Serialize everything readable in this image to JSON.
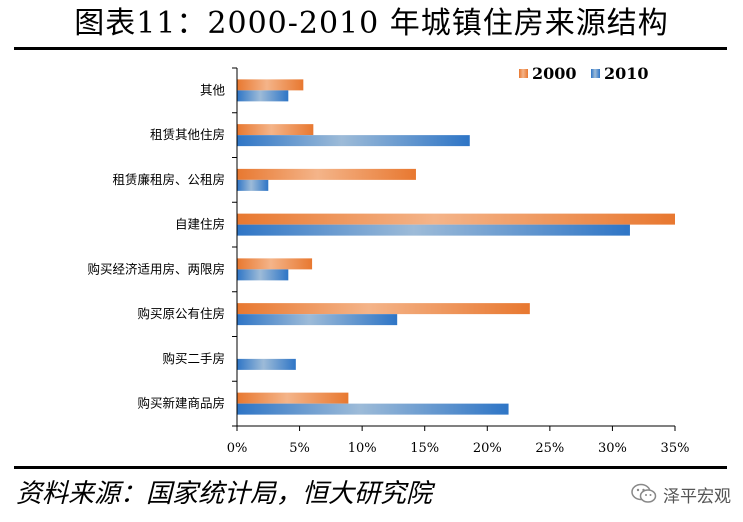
{
  "title": "图表11：2000-2010 年城镇住房来源结构",
  "source": "资料来源：国家统计局，恒大研究院",
  "watermark": {
    "text": "泽平宏观",
    "icon": "wechat-icon"
  },
  "chart_data": {
    "type": "bar",
    "orientation": "horizontal",
    "categories": [
      "其他",
      "租赁其他住房",
      "租赁廉租房、公租房",
      "自建住房",
      "购买经济适用房、两限房",
      "购买原公有住房",
      "购买二手房",
      "购买新建商品房"
    ],
    "series": [
      {
        "name": "2000",
        "color": "#E87830",
        "values": [
          5.3,
          6.1,
          14.3,
          35.0,
          6.0,
          23.4,
          0.0,
          8.9
        ]
      },
      {
        "name": "2010",
        "color": "#2E75C6",
        "values": [
          4.1,
          18.6,
          2.5,
          31.4,
          4.1,
          12.8,
          4.7,
          21.7
        ]
      }
    ],
    "xlim": [
      0,
      35
    ],
    "xticks": [
      "0%",
      "5%",
      "10%",
      "15%",
      "20%",
      "25%",
      "30%",
      "35%"
    ],
    "legend_position": "top-right",
    "grid": false
  }
}
